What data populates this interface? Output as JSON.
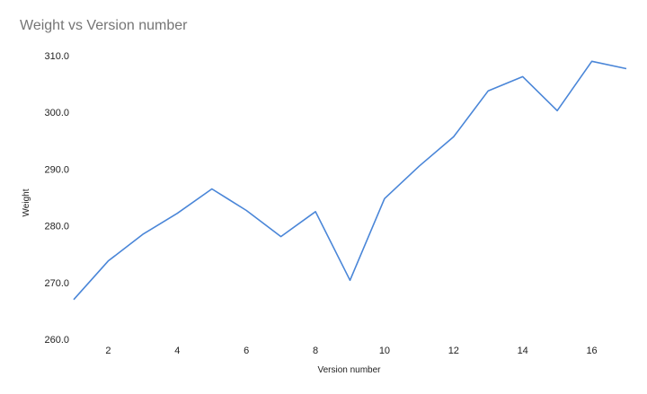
{
  "chart_data": {
    "type": "line",
    "title": "Weight vs Version number",
    "xlabel": "Version number",
    "ylabel": "Weight",
    "xlim": [
      1,
      17
    ],
    "ylim": [
      260,
      310
    ],
    "x_ticks": [
      2,
      4,
      6,
      8,
      10,
      12,
      14,
      16
    ],
    "y_ticks": [
      "260.0",
      "270.0",
      "280.0",
      "290.0",
      "300.0",
      "310.0"
    ],
    "grid": false,
    "legend": "none",
    "line_color": "#4a86d8",
    "series": [
      {
        "x": [
          1,
          2,
          3,
          4,
          5,
          6,
          7,
          8,
          9,
          10,
          11,
          12,
          13,
          14,
          15,
          16,
          17
        ],
        "values": [
          267.0,
          273.8,
          278.5,
          282.2,
          286.5,
          282.7,
          278.1,
          282.5,
          270.4,
          284.8,
          290.5,
          295.7,
          303.8,
          306.3,
          300.3,
          309.0,
          307.7
        ]
      }
    ]
  }
}
